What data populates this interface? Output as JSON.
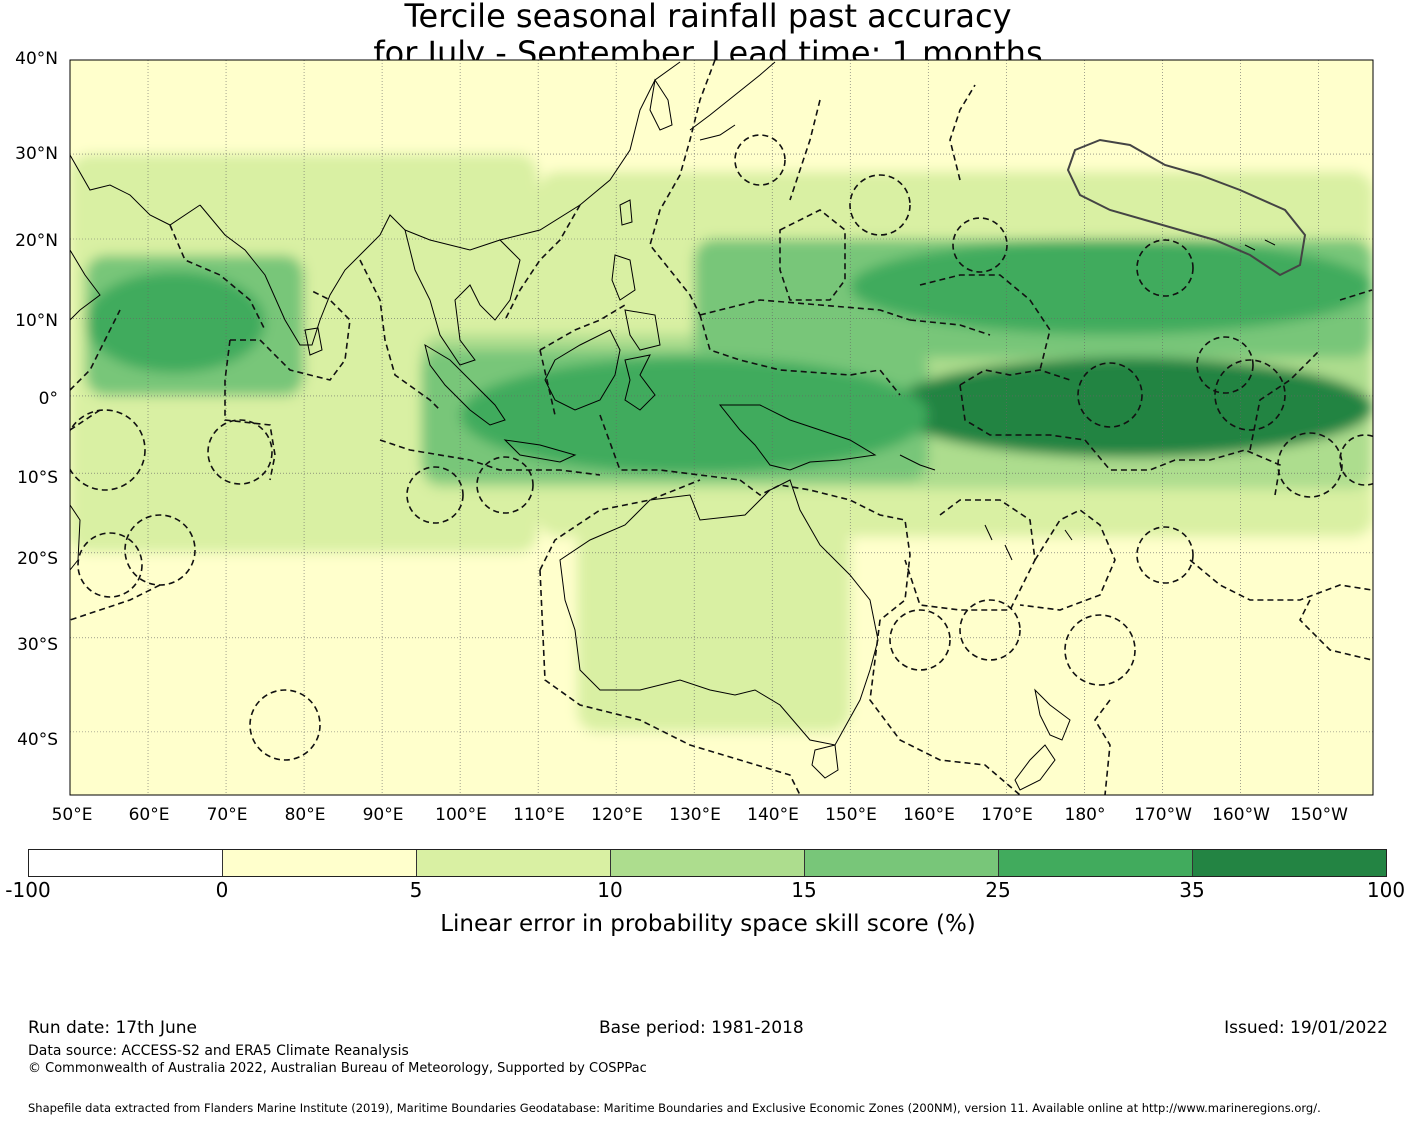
{
  "title": {
    "line1": "Tercile seasonal rainfall past accuracy",
    "line2": "for July - September. Lead time: 1 months"
  },
  "map": {
    "latitude_labels": [
      "40°N",
      "30°N",
      "20°N",
      "10°N",
      "0°",
      "10°S",
      "20°S",
      "30°S",
      "40°S"
    ],
    "longitude_labels": [
      "50°E",
      "60°E",
      "70°E",
      "80°E",
      "90°E",
      "100°E",
      "110°E",
      "120°E",
      "130°E",
      "140°E",
      "150°E",
      "160°E",
      "170°E",
      "180°",
      "170°W",
      "160°W",
      "150°W"
    ],
    "projection": "Mercator",
    "extent": {
      "lon_min": 50,
      "lon_max": 217,
      "lat_min": -46,
      "lat_max": 40
    },
    "features": [
      "coastlines",
      "dashed EEZ maritime boundaries",
      "graticule"
    ],
    "regions": [
      {
        "name": "equatorial Pacific band",
        "lon_range": [
          155,
          217
        ],
        "lat_range": [
          -8,
          5
        ],
        "skill_class": "35 to 100"
      },
      {
        "name": "Maritime Continent",
        "lon_range": [
          100,
          160
        ],
        "lat_range": [
          -10,
          5
        ],
        "skill_class": "25 to 35"
      },
      {
        "name": "north Pacific ITCZ band",
        "lon_range": [
          150,
          217
        ],
        "lat_range": [
          8,
          20
        ],
        "skill_class": "25 to 35"
      },
      {
        "name": "Arabian Sea / western Indian Ocean",
        "lon_range": [
          52,
          75
        ],
        "lat_range": [
          3,
          16
        ],
        "skill_class": "25 to 35"
      },
      {
        "name": "southern Indian Ocean",
        "lon_range": [
          50,
          100
        ],
        "lat_range": [
          -46,
          -20
        ],
        "skill_class": "0 to 5"
      },
      {
        "name": "Australia interior",
        "lon_range": [
          115,
          150
        ],
        "lat_range": [
          -35,
          -15
        ],
        "skill_class": "5 to 10"
      }
    ]
  },
  "colorbar": {
    "label": "Linear error in probability space skill score (%)",
    "ticks": [
      "-100",
      "0",
      "5",
      "10",
      "15",
      "25",
      "35",
      "100"
    ],
    "segments": [
      {
        "range": "-100 to 0",
        "color": "#ffffff"
      },
      {
        "range": "0 to 5",
        "color": "#ffffcc"
      },
      {
        "range": "5 to 10",
        "color": "#d9f0a3"
      },
      {
        "range": "10 to 15",
        "color": "#addd8e"
      },
      {
        "range": "15 to 25",
        "color": "#78c679"
      },
      {
        "range": "25 to 35",
        "color": "#41ab5d"
      },
      {
        "range": "35 to 100",
        "color": "#238443"
      }
    ]
  },
  "footer": {
    "run_date": "Run date: 17th June",
    "base_period": "Base period: 1981-2018",
    "issued": "Issued: 19/01/2022",
    "data_source": "Data source: ACCESS-S2 and ERA5 Climate Reanalysis",
    "copyright": "© Commonwealth of Australia 2022, Australian Bureau of Meteorology, Supported by COSPPac",
    "shapefile": "Shapefile data extracted from Flanders Marine Institute (2019), Maritime Boundaries Geodatabase: Maritime Boundaries and Exclusive Economic Zones (200NM), version 11. Available online at http://www.marineregions.org/."
  }
}
